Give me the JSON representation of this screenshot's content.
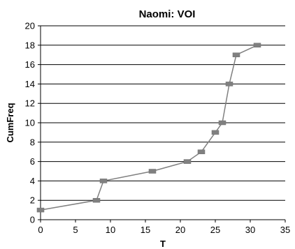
{
  "chart_data": {
    "type": "line",
    "title": "Naomi: VOI",
    "xlabel": "T",
    "ylabel": "CumFreq",
    "xlim": [
      0,
      35
    ],
    "ylim": [
      0,
      20
    ],
    "xticks": [
      "0",
      "5",
      "10",
      "15",
      "20",
      "25",
      "30",
      "35"
    ],
    "yticks": [
      "0",
      "2",
      "4",
      "6",
      "8",
      "10",
      "12",
      "14",
      "16",
      "18",
      "20"
    ],
    "grid": "horizontal",
    "series": [
      {
        "x": [
          0,
          8,
          9,
          16,
          21,
          23,
          25,
          26,
          27,
          28,
          31
        ],
        "y": [
          1,
          2,
          4,
          5,
          6,
          7,
          9,
          10,
          14,
          17,
          18
        ],
        "color": "#808080"
      }
    ]
  }
}
